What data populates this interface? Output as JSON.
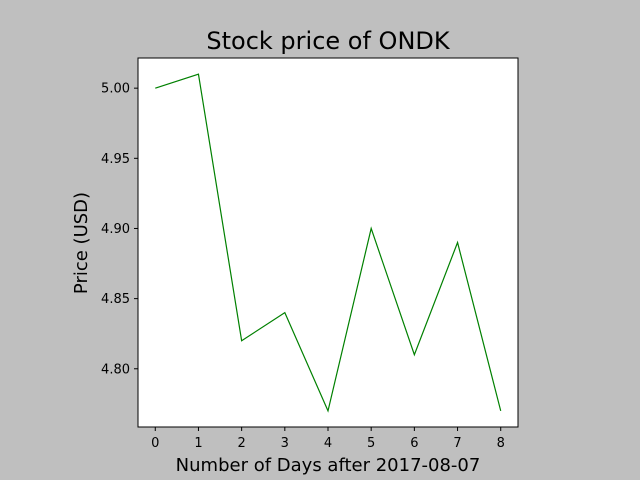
{
  "chart_data": {
    "type": "line",
    "title": "Stock price of ONDK",
    "xlabel": "Number of Days after 2017-08-07",
    "ylabel": "Price (USD)",
    "x": [
      0,
      1,
      2,
      3,
      4,
      5,
      6,
      7,
      8
    ],
    "series": [
      {
        "values": [
          5.0,
          5.01,
          4.82,
          4.84,
          4.77,
          4.9,
          4.81,
          4.89,
          4.77
        ],
        "color": "#008000"
      }
    ],
    "xlim": [
      -0.4,
      8.4
    ],
    "ylim": [
      4.7585,
      5.0215
    ],
    "xticks": [
      0,
      1,
      2,
      3,
      4,
      5,
      6,
      7,
      8
    ],
    "xtick_labels": [
      "0",
      "1",
      "2",
      "3",
      "4",
      "5",
      "6",
      "7",
      "8"
    ],
    "yticks": [
      4.8,
      4.85,
      4.9,
      4.95,
      5.0
    ],
    "ytick_labels": [
      "4.80",
      "4.85",
      "4.90",
      "4.95",
      "5.00"
    ],
    "grid": false,
    "legend": false,
    "colors": {
      "figure_background": "#bfbfbf",
      "plot_background": "#ffffff",
      "line": "#008000"
    }
  }
}
